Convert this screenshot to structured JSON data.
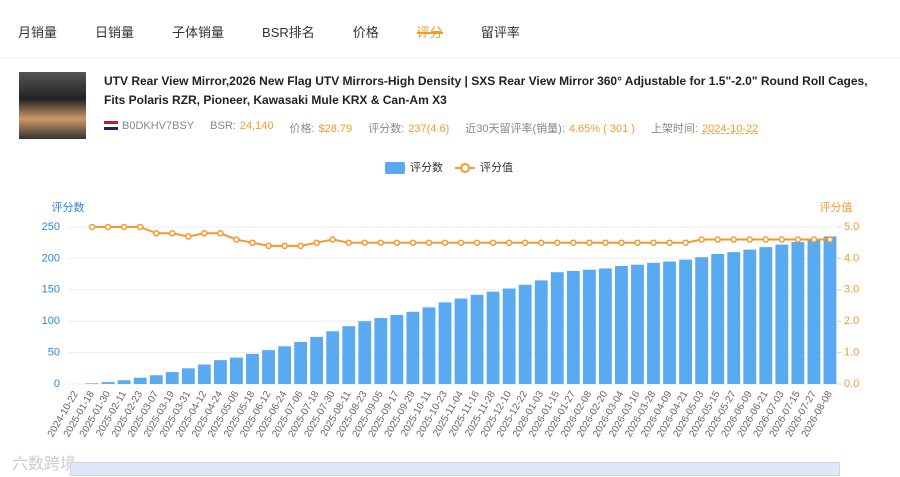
{
  "tabs": [
    "月销量",
    "日销量",
    "子体销量",
    "BSR排名",
    "价格",
    "评分",
    "留评率"
  ],
  "product": {
    "title": "UTV Rear View Mirror,2026 New Flag UTV Mirrors-High Density | SXS Rear View Mirror 360° Adjustable for 1.5\"-2.0\" Round Roll Cages, Fits Polaris RZR, Pioneer, Kawasaki Mule KRX & Can-Am X3",
    "asin": "B0DKHV7BSY",
    "stats": [
      {
        "label": "BSR:",
        "value": "24,140"
      },
      {
        "label": "价格:",
        "value": "$28.79"
      },
      {
        "label": "评分数:",
        "value": "237(4.6)"
      },
      {
        "label": "近30天留评率(销量):",
        "value": "4.65% ( 301 )"
      },
      {
        "label": "上架时间:",
        "value": "2024-10-22"
      }
    ]
  },
  "watermark": "六数跨境",
  "chart_data": {
    "type": "bar",
    "y_label": "评分数",
    "y2_label": "评分值",
    "categories": [
      "2024-10-22",
      "2025-01-18",
      "2025-01-30",
      "2025-02-11",
      "2025-02-23",
      "2025-03-07",
      "2025-03-19",
      "2025-03-31",
      "2025-04-12",
      "2025-04-24",
      "2025-05-06",
      "2025-05-18",
      "2025-06-12",
      "2025-06-24",
      "2025-07-06",
      "2025-07-18",
      "2025-07-30",
      "2025-08-11",
      "2025-08-23",
      "2025-09-05",
      "2025-09-17",
      "2025-09-29",
      "2025-10-11",
      "2025-10-23",
      "2025-11-04",
      "2025-11-16",
      "2025-11-28",
      "2025-12-10",
      "2025-12-22",
      "2026-01-03",
      "2026-01-15",
      "2026-01-27",
      "2026-02-08",
      "2026-02-20",
      "2026-03-04",
      "2026-03-16",
      "2026-03-28",
      "2026-04-09",
      "2026-04-21",
      "2026-05-03",
      "2026-05-15",
      "2026-05-27",
      "2026-06-09",
      "2026-06-21",
      "2026-07-03",
      "2026-07-15",
      "2026-07-27",
      "2026-08-08"
    ],
    "series": [
      {
        "name": "评分数",
        "type": "bar",
        "color": "#5aaaf2",
        "values": [
          0,
          1,
          3,
          6,
          10,
          14,
          19,
          25,
          31,
          38,
          42,
          48,
          54,
          60,
          67,
          75,
          84,
          92,
          100,
          105,
          110,
          115,
          122,
          130,
          136,
          142,
          147,
          152,
          158,
          165,
          178,
          180,
          182,
          184,
          188,
          190,
          193,
          195,
          198,
          202,
          207,
          210,
          214,
          218,
          222,
          226,
          230,
          235
        ]
      },
      {
        "name": "评分值",
        "type": "line",
        "axis": "y2",
        "color": "#f39a2b",
        "values": [
          null,
          5.0,
          5.0,
          5.0,
          5.0,
          4.8,
          4.8,
          4.7,
          4.8,
          4.8,
          4.6,
          4.5,
          4.4,
          4.4,
          4.4,
          4.5,
          4.6,
          4.5,
          4.5,
          4.5,
          4.5,
          4.5,
          4.5,
          4.5,
          4.5,
          4.5,
          4.5,
          4.5,
          4.5,
          4.5,
          4.5,
          4.5,
          4.5,
          4.5,
          4.5,
          4.5,
          4.5,
          4.5,
          4.5,
          4.6,
          4.6,
          4.6,
          4.6,
          4.6,
          4.6,
          4.6,
          4.6,
          4.6
        ]
      }
    ],
    "ylim": [
      0,
      250
    ],
    "yticks": [
      0,
      50,
      100,
      150,
      200,
      250
    ],
    "y2lim": [
      0,
      5
    ],
    "y2ticks": [
      {
        "value": 0,
        "label": "0.0"
      },
      {
        "value": 1,
        "label": "1.0"
      },
      {
        "value": 2,
        "label": "2.0"
      },
      {
        "value": 3,
        "label": "3.0"
      },
      {
        "value": 4,
        "label": "4.0"
      },
      {
        "value": 5,
        "label": "5.0"
      }
    ],
    "grid": true,
    "legend": "top"
  }
}
